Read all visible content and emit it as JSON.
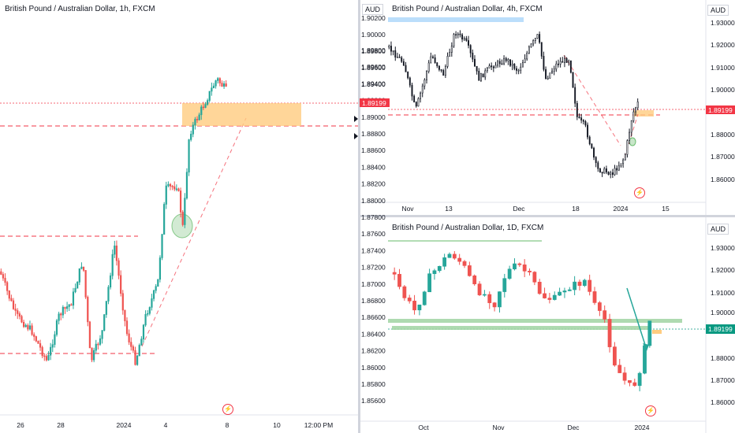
{
  "panels": {
    "left": {
      "title": "British Pound / Australian Dollar, 1h, FXCM",
      "price_labels": [
        "1.89800",
        "1.89600",
        "1.89400",
        "1.89200",
        "1.89000",
        "1.88800",
        "1.88600",
        "1.88400",
        "1.88200",
        "1.88000",
        "1.87800",
        "1.87600",
        "1.87400",
        "1.87200",
        "1.87000",
        "1.86800",
        "1.86600",
        "1.86400",
        "1.86200",
        "1.86000",
        "1.85800",
        "1.85600"
      ],
      "current_price": "1.89199",
      "x_labels": [
        "26",
        "28",
        "2024",
        "4",
        "8",
        "10",
        "12:00 PM"
      ]
    },
    "top_right": {
      "title": "British Pound / Australian Dollar, 4h, FXCM",
      "currency": "AUD",
      "price_labels": [
        "1.93000",
        "1.92000",
        "1.91000",
        "1.90000",
        "1.88000",
        "1.87000",
        "1.86000"
      ],
      "current_price": "1.89199",
      "x_labels": [
        "Nov",
        "13",
        "Dec",
        "18",
        "2024",
        "15"
      ]
    },
    "bottom_right": {
      "title": "British Pound / Australian Dollar, 1D, FXCM",
      "currency": "AUD",
      "price_labels": [
        "1.93000",
        "1.92000",
        "1.91000",
        "1.90000",
        "1.88000",
        "1.87000",
        "1.86000"
      ],
      "current_price": "1.89199",
      "x_labels": [
        "Oct",
        "Nov",
        "Dec",
        "2024"
      ]
    },
    "middle": {
      "currency": "AUD",
      "price_labels": [
        "1.90200",
        "1.90000",
        "1.89800",
        "1.89600",
        "1.89400"
      ]
    }
  },
  "colors": {
    "bull": "#26a69a",
    "bear": "#ef5350",
    "dark_candle": "#131722",
    "zone_orange": "#ffcc80",
    "zone_green": "#a5d6a7",
    "zone_blue": "#bbdefb",
    "price_red": "#f23645",
    "price_green": "#089981",
    "dashed_red": "#f23645"
  },
  "icons": [
    "lightning-icon"
  ]
}
